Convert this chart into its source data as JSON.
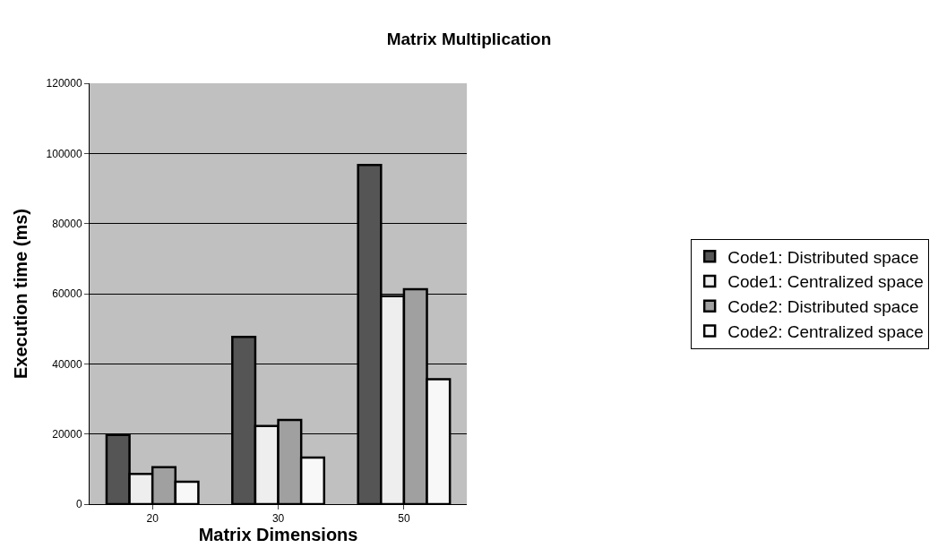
{
  "chart_data": {
    "type": "bar",
    "title": "Matrix Multiplication",
    "xlabel": "Matrix Dimensions",
    "ylabel": "Execution time (ms)",
    "categories": [
      "20",
      "30",
      "50"
    ],
    "series": [
      {
        "name": "Code1: Distributed space",
        "color": "#555555",
        "values": [
          19700,
          47700,
          96700
        ]
      },
      {
        "name": "Code1: Centralized space",
        "color": "#eeeeee",
        "values": [
          8600,
          22300,
          59300
        ]
      },
      {
        "name": "Code2: Distributed space",
        "color": "#a0a0a0",
        "values": [
          10500,
          24000,
          61300
        ]
      },
      {
        "name": "Code2: Centralized space",
        "color": "#f8f8f8",
        "values": [
          6400,
          13300,
          35600
        ]
      }
    ],
    "ylim": [
      0,
      120000
    ],
    "yticks": [
      0,
      20000,
      40000,
      60000,
      80000,
      100000,
      120000
    ],
    "grid": "y",
    "legend": "right"
  }
}
